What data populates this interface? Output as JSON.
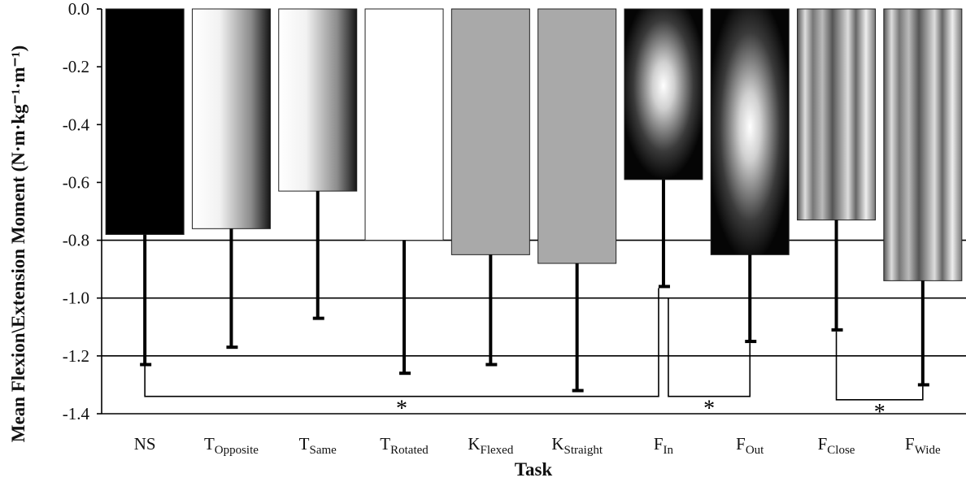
{
  "chart_data": {
    "type": "bar",
    "xlabel": "Task",
    "ylabel": "Mean Flexion\\Extension Moment (N·m·kg⁻¹·m⁻¹)",
    "ylim": [
      -1.4,
      0.0
    ],
    "yticks": [
      "0.0",
      "-0.2",
      "-0.4",
      "-0.6",
      "-0.8",
      "-1.0",
      "-1.2",
      "-1.4"
    ],
    "ytick_values": [
      0.0,
      -0.2,
      -0.4,
      -0.6,
      -0.8,
      -1.0,
      -1.2,
      -1.4
    ],
    "gridlines_at": [
      -0.8,
      -1.0,
      -1.2
    ],
    "categories": [
      {
        "main": "NS",
        "sub": ""
      },
      {
        "main": "T",
        "sub": "Opposite"
      },
      {
        "main": "T",
        "sub": "Same"
      },
      {
        "main": "T",
        "sub": "Rotated"
      },
      {
        "main": "K",
        "sub": "Flexed"
      },
      {
        "main": "K",
        "sub": "Straight"
      },
      {
        "main": "F",
        "sub": "In"
      },
      {
        "main": "F",
        "sub": "Out"
      },
      {
        "main": "F",
        "sub": "Close"
      },
      {
        "main": "F",
        "sub": "Wide"
      }
    ],
    "values": [
      -0.78,
      -0.76,
      -0.63,
      -0.8,
      -0.85,
      -0.88,
      -0.59,
      -0.85,
      -0.73,
      -0.94
    ],
    "error_sd": [
      0.45,
      0.41,
      0.44,
      0.46,
      0.38,
      0.44,
      0.37,
      0.3,
      0.38,
      0.36
    ],
    "significance": [
      {
        "from_index": 0,
        "to_index": 6,
        "label": "*",
        "level": -1.34
      },
      {
        "from_index": 6,
        "to_index": 7,
        "label": "*",
        "level": -1.34
      },
      {
        "from_index": 8,
        "to_index": 9,
        "label": "*",
        "level": -1.36
      }
    ],
    "fills": [
      "solid-black",
      "gradient-white-black",
      "gradient-white-black",
      "white",
      "gray",
      "gray",
      "radial-white-black",
      "radial-white-black",
      "striped-gray",
      "striped-gray"
    ],
    "colors": {
      "black": "#000000",
      "white": "#ffffff",
      "gray": "#a9a9a9"
    }
  }
}
